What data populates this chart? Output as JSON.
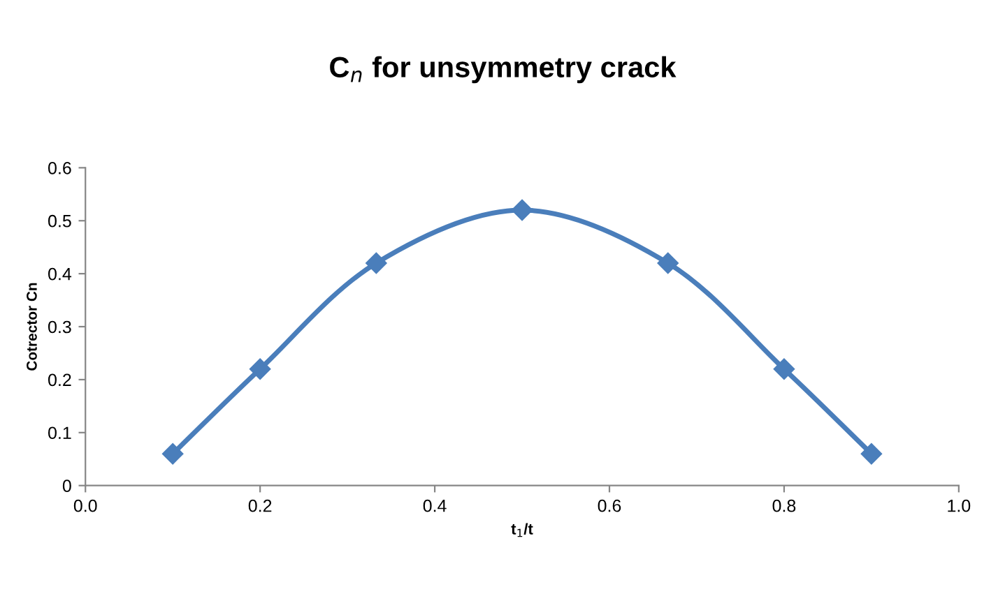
{
  "chart_data": {
    "type": "line",
    "title": "C$_{n}$ for unsymmetry crack",
    "xlabel": "t$_{1}$/t",
    "ylabel": "Cotrector Cn",
    "series": [
      {
        "x": [
          0.1,
          0.2,
          0.333,
          0.5,
          0.667,
          0.8,
          0.9
        ],
        "values": [
          0.06,
          0.22,
          0.42,
          0.52,
          0.42,
          0.22,
          0.06
        ],
        "color": "#4a7ebb"
      }
    ],
    "xlim": [
      0.0,
      1.0
    ],
    "xticks": [
      {
        "value": 0,
        "label": "0.0"
      },
      0.2,
      0.4,
      0.6,
      0.8,
      {
        "value": 1,
        "label": "1.0"
      }
    ],
    "ylim": [
      0,
      0.6
    ],
    "yticks": [
      0,
      0.1,
      0.2,
      0.3,
      0.4,
      0.5,
      0.6
    ],
    "grid": false,
    "legend": false,
    "marker": "diamond",
    "line_style": "solid"
  }
}
